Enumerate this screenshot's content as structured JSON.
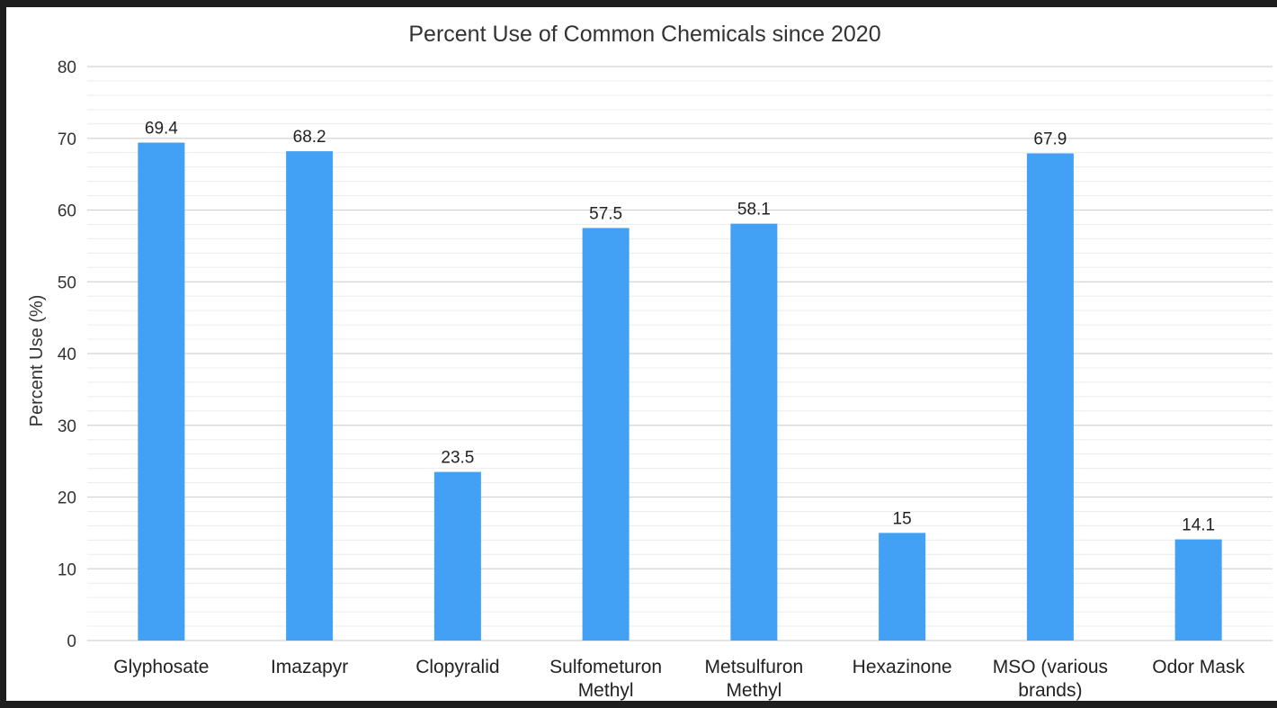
{
  "chart_data": {
    "type": "bar",
    "title": "Percent Use of Common Chemicals since 2020",
    "xlabel": "",
    "ylabel": "Percent Use (%)",
    "ylim": [
      0,
      80
    ],
    "yticks": [
      0,
      10,
      20,
      30,
      40,
      50,
      60,
      70,
      80
    ],
    "categories": [
      [
        "Glyphosate"
      ],
      [
        "Imazapyr"
      ],
      [
        "Clopyralid"
      ],
      [
        "Sulfometuron",
        "Methyl"
      ],
      [
        "Metsulfuron",
        "Methyl"
      ],
      [
        "Hexazinone"
      ],
      [
        "MSO (various",
        "brands)"
      ],
      [
        "Odor Mask"
      ]
    ],
    "values": [
      69.4,
      68.2,
      23.5,
      57.5,
      58.1,
      15,
      67.9,
      14.1
    ],
    "data_labels": [
      "69.4",
      "68.2",
      "23.5",
      "57.5",
      "58.1",
      "15",
      "67.9",
      "14.1"
    ],
    "grid": true,
    "legend": "none",
    "colors": {
      "bar": "#42a0f5",
      "grid_major": "#d4d4d4",
      "grid_minor": "#ececec",
      "frame": "#1e1e1e"
    }
  }
}
